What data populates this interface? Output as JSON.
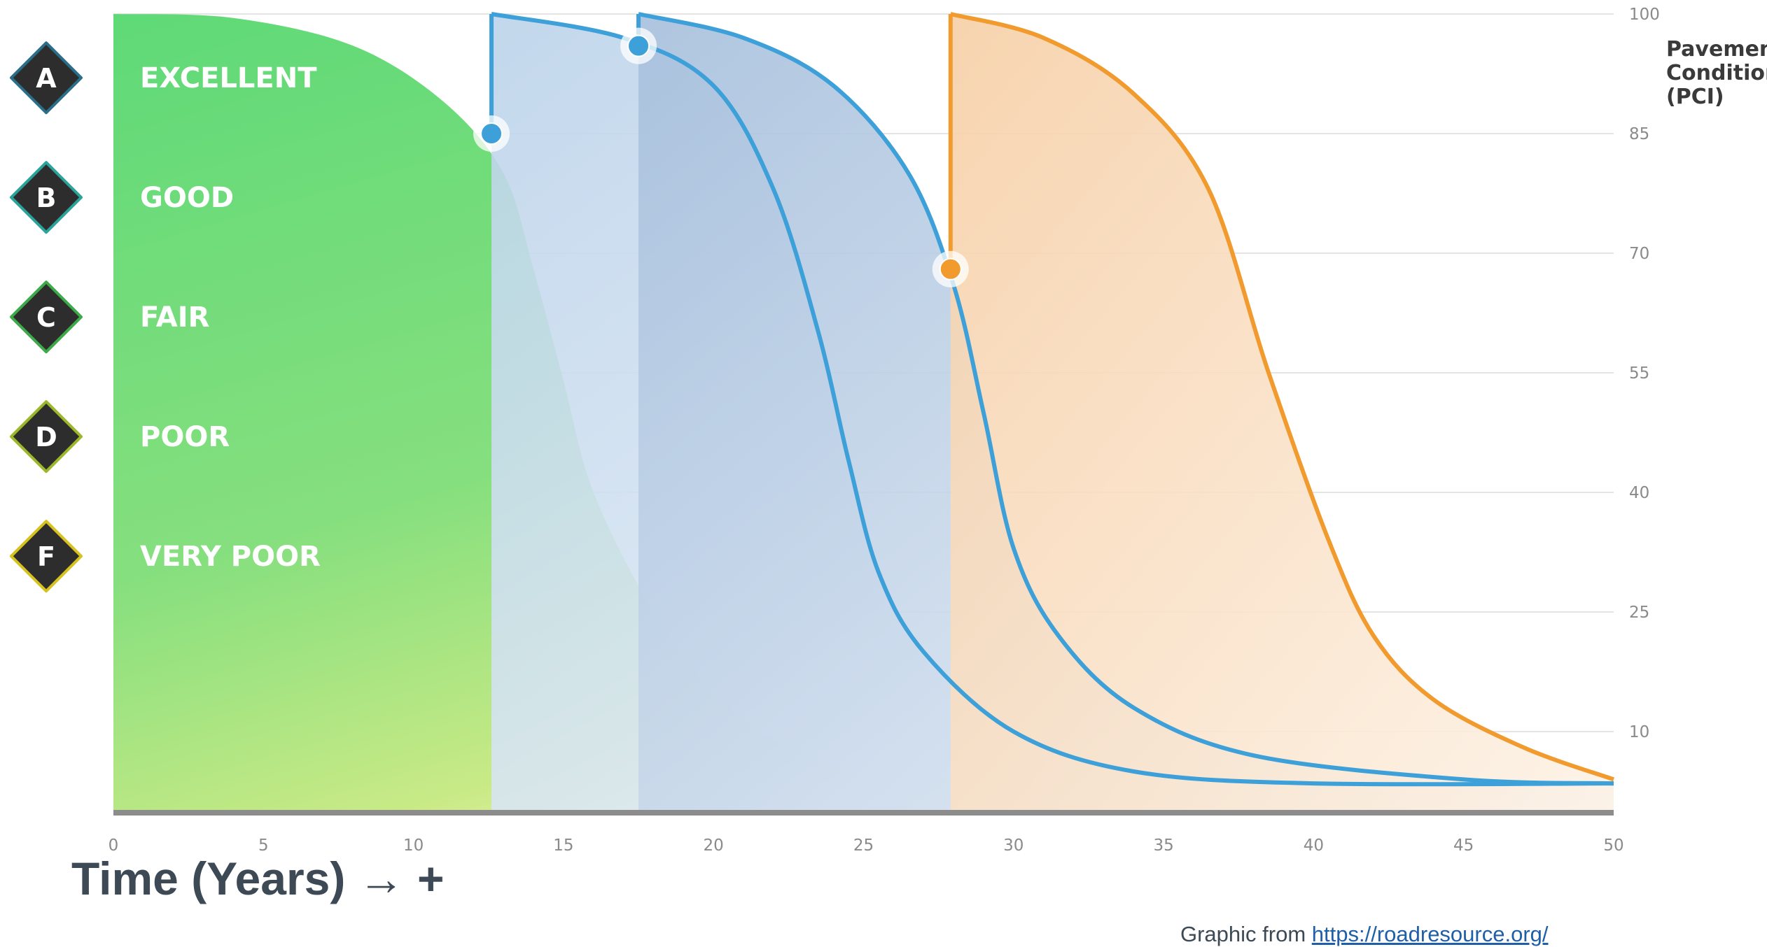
{
  "chart_data": {
    "type": "area",
    "xlabel": "Time (Years) → +",
    "ylabel_lines": [
      "Pavement",
      "Condition",
      "(PCI)"
    ],
    "x_ticks": [
      0,
      5,
      10,
      15,
      20,
      25,
      30,
      35,
      40,
      45,
      50
    ],
    "y_ticks": [
      10,
      25,
      40,
      55,
      70,
      85,
      100
    ],
    "xlim": [
      0,
      50
    ],
    "ylim": [
      0,
      100
    ],
    "grid": true,
    "grades": [
      {
        "letter": "A",
        "label": "EXCELLENT",
        "pci": 92,
        "color": "#2a6f8a"
      },
      {
        "letter": "B",
        "label": "GOOD",
        "pci": 77,
        "color": "#2aa39a"
      },
      {
        "letter": "C",
        "label": "FAIR",
        "pci": 62,
        "color": "#3daa4a"
      },
      {
        "letter": "D",
        "label": "POOR",
        "pci": 47,
        "color": "#9ab82a"
      },
      {
        "letter": "F",
        "label": "VERY POOR",
        "pci": 32,
        "color": "#d6c21e"
      }
    ],
    "series": [
      {
        "points": [
          [
            0,
            100
          ],
          [
            4,
            99.5
          ],
          [
            8,
            96
          ],
          [
            11,
            89
          ],
          [
            13,
            80
          ],
          [
            14,
            68
          ],
          [
            15,
            54
          ],
          [
            16,
            40
          ],
          [
            18,
            25
          ],
          [
            20,
            15
          ],
          [
            22,
            9
          ],
          [
            25,
            5
          ],
          [
            30,
            4
          ],
          [
            40,
            3.5
          ],
          [
            50,
            3.5
          ]
        ],
        "color": "#5fd97a"
      },
      {
        "points": [
          [
            12.6,
            100
          ],
          [
            17,
            97
          ],
          [
            20,
            91
          ],
          [
            22,
            78
          ],
          [
            23.5,
            60
          ],
          [
            24.5,
            44
          ],
          [
            25.5,
            30
          ],
          [
            27,
            20
          ],
          [
            30,
            10
          ],
          [
            34,
            5
          ],
          [
            40,
            3.5
          ],
          [
            50,
            3.5
          ]
        ],
        "color": "#3ea0d8"
      },
      {
        "points": [
          [
            17.5,
            100
          ],
          [
            21,
            97
          ],
          [
            24,
            91
          ],
          [
            26.5,
            80
          ],
          [
            28,
            66
          ],
          [
            29,
            50
          ],
          [
            30,
            33
          ],
          [
            31.5,
            22
          ],
          [
            34,
            13
          ],
          [
            38,
            7
          ],
          [
            45,
            4
          ],
          [
            50,
            3.5
          ]
        ],
        "color": "#3ea0d8"
      },
      {
        "points": [
          [
            27.9,
            100
          ],
          [
            31,
            97
          ],
          [
            34,
            90
          ],
          [
            36.5,
            78
          ],
          [
            38.5,
            55
          ],
          [
            40.5,
            34
          ],
          [
            42,
            22
          ],
          [
            44,
            14
          ],
          [
            47,
            8
          ],
          [
            50,
            4
          ]
        ],
        "color": "#f19a2e"
      }
    ],
    "treatments": [
      {
        "x": 12.6,
        "y_from": 85,
        "y_to": 100,
        "color": "#3ea0d8"
      },
      {
        "x": 17.5,
        "y_from": 96,
        "y_to": 100,
        "color": "#3ea0d8"
      },
      {
        "x": 27.9,
        "y_from": 68,
        "y_to": 100,
        "color": "#f19a2e"
      }
    ]
  },
  "credit": {
    "prefix": "Graphic from ",
    "link_text": "https://roadresource.org/"
  }
}
